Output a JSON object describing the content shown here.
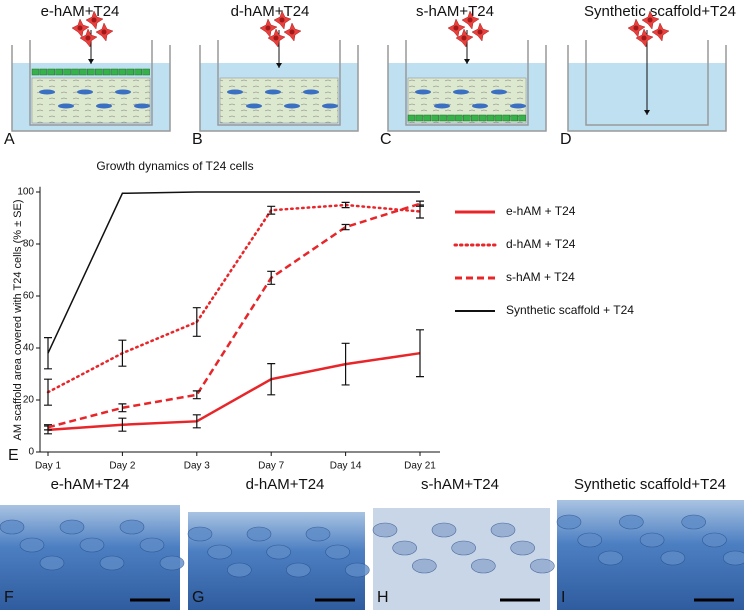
{
  "top_panels": [
    {
      "title": "e-hAM+T24",
      "letter": "A"
    },
    {
      "title": "d-hAM+T24",
      "letter": "B"
    },
    {
      "title": "s-hAM+T24",
      "letter": "C"
    },
    {
      "title": "Synthetic scaffold+T24",
      "letter": "D"
    }
  ],
  "chart_data": {
    "type": "line",
    "title": "Growth dynamics of T24 cells",
    "panel_letter": "E",
    "y_label": "AM scaffold area covered with T24 cells (% ± SE)",
    "categories": [
      "Day 1",
      "Day 2",
      "Day 3",
      "Day 7",
      "Day 14",
      "Day 21"
    ],
    "ylim": [
      0,
      102
    ],
    "yticks": [
      0,
      20,
      40,
      60,
      80,
      100
    ],
    "series": [
      {
        "name": "e-hAM + T24",
        "color": "#e8262a",
        "dash": "solid",
        "width": 2.5,
        "values": [
          8.5,
          10.5,
          11.8,
          28,
          33.8,
          38
        ],
        "errors": [
          1.5,
          2.5,
          2.5,
          6,
          8,
          9
        ]
      },
      {
        "name": "d-hAM + T24",
        "color": "#e8262a",
        "dash": "dotted",
        "width": 2.5,
        "values": [
          23,
          38,
          50,
          93,
          95,
          92.5
        ],
        "errors": [
          5,
          5,
          5.5,
          1.5,
          1,
          2.5
        ]
      },
      {
        "name": "s-hAM + T24",
        "color": "#e8262a",
        "dash": "dashed",
        "width": 2.5,
        "values": [
          9.5,
          17,
          22,
          67,
          86.5,
          95.5
        ],
        "errors": [
          1,
          1.5,
          1.5,
          2.5,
          1,
          1
        ]
      },
      {
        "name": "Synthetic scaffold + T24",
        "color": "#111111",
        "dash": "solid",
        "width": 1.5,
        "values": [
          38,
          99.5,
          100,
          100,
          100,
          100
        ],
        "errors": [
          6,
          null,
          null,
          null,
          null,
          null
        ]
      }
    ]
  },
  "bottom_panels": [
    {
      "title": "e-hAM+T24",
      "letter": "F"
    },
    {
      "title": "d-hAM+T24",
      "letter": "G"
    },
    {
      "title": "s-hAM+T24",
      "letter": "H"
    },
    {
      "title": "Synthetic scaffold+T24",
      "letter": "I"
    }
  ]
}
